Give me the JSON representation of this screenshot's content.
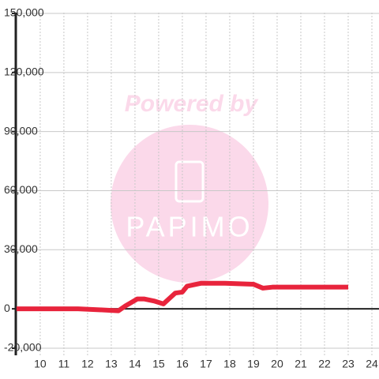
{
  "chart_data": {
    "type": "line",
    "annotations": [
      "Powered by",
      "PAPIMO"
    ],
    "x": [
      9,
      11.6,
      12.5,
      13.3,
      13.6,
      14.1,
      14.4,
      14.8,
      15.2,
      15.7,
      16,
      16.2,
      16.8,
      17.8,
      19,
      19.4,
      19.8,
      23
    ],
    "series": [
      {
        "color": "#e8243c",
        "values": [
          0,
          0,
          -500,
          -1000,
          1500,
          5000,
          5000,
          4000,
          2500,
          8000,
          8500,
          11500,
          13000,
          13000,
          12500,
          10500,
          11000,
          11000
        ]
      }
    ],
    "xlim": [
      8.97,
      24.3
    ],
    "xticks": [
      10,
      11,
      12,
      13,
      14,
      15,
      16,
      17,
      18,
      19,
      20,
      21,
      22,
      23,
      24
    ],
    "ylim": [
      -20400,
      150400
    ],
    "yticks": [
      {
        "value": -20000,
        "label": "-20,000"
      },
      0,
      {
        "value": 30000,
        "label": "30,000"
      },
      {
        "value": 60000,
        "label": "60,000"
      },
      {
        "value": 90000,
        "label": "90,000"
      },
      {
        "value": 120000,
        "label": "120,000"
      },
      {
        "value": 150000,
        "label": "150,000"
      }
    ],
    "grid": true
  }
}
